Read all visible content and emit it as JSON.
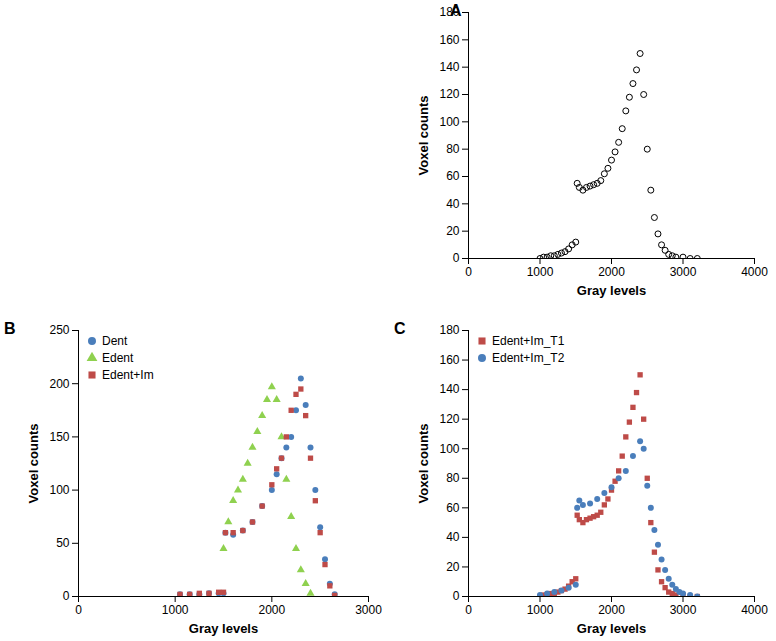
{
  "chart_data": [
    {
      "type": "scatter",
      "title": "A",
      "x_label": "Gray levels",
      "y_label": "Voxel counts",
      "xlim": [
        0,
        4000
      ],
      "xticks": [
        0,
        1000,
        2000,
        3000,
        4000
      ],
      "ylim": [
        0,
        180
      ],
      "yticks": [
        0,
        20,
        40,
        60,
        80,
        100,
        120,
        140,
        160,
        180
      ],
      "color": "#000000",
      "marker": "open_circle",
      "x": [
        1000,
        1050,
        1100,
        1150,
        1200,
        1250,
        1300,
        1350,
        1400,
        1450,
        1500,
        1520,
        1550,
        1600,
        1650,
        1700,
        1750,
        1800,
        1850,
        1900,
        1950,
        2000,
        2050,
        2100,
        2150,
        2200,
        2250,
        2300,
        2350,
        2400,
        2450,
        2500,
        2550,
        2600,
        2650,
        2700,
        2750,
        2800,
        2850,
        2900,
        3000,
        3100,
        3200
      ],
      "values": [
        0,
        1,
        1,
        2,
        2,
        3,
        4,
        5,
        7,
        10,
        12,
        55,
        52,
        50,
        52,
        53,
        54,
        55,
        57,
        62,
        66,
        72,
        78,
        85,
        95,
        108,
        118,
        128,
        138,
        150,
        120,
        80,
        50,
        30,
        18,
        10,
        6,
        3,
        2,
        1,
        1,
        0,
        0
      ]
    },
    {
      "type": "scatter",
      "title": "B",
      "x_label": "Gray levels",
      "y_label": "Voxel counts",
      "xlim": [
        0,
        3000
      ],
      "xticks": [
        0,
        1000,
        2000,
        3000
      ],
      "ylim": [
        0,
        250
      ],
      "yticks": [
        0,
        50,
        100,
        150,
        200,
        250
      ],
      "legend": "top-left",
      "series": [
        {
          "name": "Dent",
          "color": "#4a7ebb",
          "marker": "circle",
          "x": [
            1050,
            1150,
            1250,
            1350,
            1450,
            1500,
            1520,
            1600,
            1700,
            1800,
            1900,
            2000,
            2050,
            2100,
            2150,
            2200,
            2250,
            2300,
            2350,
            2400,
            2450,
            2500,
            2550,
            2600,
            2650
          ],
          "values": [
            2,
            2,
            2,
            3,
            3,
            3,
            60,
            58,
            62,
            70,
            85,
            100,
            115,
            130,
            140,
            150,
            175,
            205,
            180,
            140,
            100,
            65,
            35,
            12,
            2
          ]
        },
        {
          "name": "Edent",
          "color": "#8fd14f",
          "marker": "triangle",
          "x": [
            1500,
            1550,
            1600,
            1650,
            1700,
            1750,
            1800,
            1850,
            1900,
            1950,
            2000,
            2050,
            2100,
            2150,
            2200,
            2250,
            2300,
            2350,
            2400
          ],
          "values": [
            45,
            70,
            90,
            100,
            110,
            125,
            140,
            155,
            170,
            185,
            197,
            185,
            150,
            110,
            75,
            45,
            25,
            12,
            3
          ]
        },
        {
          "name": "Edent+Im",
          "color": "#be4b48",
          "marker": "square",
          "x": [
            1050,
            1150,
            1250,
            1350,
            1450,
            1500,
            1520,
            1600,
            1700,
            1800,
            1900,
            2000,
            2050,
            2100,
            2150,
            2200,
            2250,
            2300,
            2350,
            2400,
            2450,
            2500,
            2550,
            2600,
            2650
          ],
          "values": [
            2,
            2,
            3,
            3,
            4,
            4,
            60,
            60,
            62,
            70,
            85,
            105,
            120,
            130,
            150,
            175,
            190,
            195,
            170,
            130,
            90,
            60,
            30,
            10,
            1
          ]
        }
      ]
    },
    {
      "type": "scatter",
      "title": "C",
      "x_label": "Gray levels",
      "y_label": "Voxel counts",
      "xlim": [
        0,
        4000
      ],
      "xticks": [
        0,
        1000,
        2000,
        3000,
        4000
      ],
      "ylim": [
        0,
        180
      ],
      "yticks": [
        0,
        20,
        40,
        60,
        80,
        100,
        120,
        140,
        160,
        180
      ],
      "legend": "top-left",
      "series": [
        {
          "name": "Edent+Im_T1",
          "color": "#be4b48",
          "marker": "square",
          "x": [
            1000,
            1050,
            1100,
            1150,
            1200,
            1250,
            1300,
            1350,
            1400,
            1450,
            1500,
            1520,
            1550,
            1600,
            1650,
            1700,
            1750,
            1800,
            1850,
            1900,
            1950,
            2000,
            2050,
            2100,
            2150,
            2200,
            2250,
            2300,
            2350,
            2400,
            2450,
            2500,
            2550,
            2600,
            2650,
            2700,
            2750,
            2800,
            2850,
            2900,
            3000,
            3100,
            3200
          ],
          "values": [
            0,
            1,
            1,
            2,
            2,
            3,
            4,
            5,
            7,
            10,
            12,
            55,
            52,
            50,
            52,
            53,
            54,
            55,
            57,
            62,
            66,
            72,
            78,
            85,
            95,
            108,
            118,
            128,
            138,
            150,
            120,
            80,
            50,
            30,
            18,
            10,
            6,
            3,
            2,
            1,
            1,
            0,
            0
          ]
        },
        {
          "name": "Edent+Im_T2",
          "color": "#4a7ebb",
          "marker": "circle",
          "x": [
            1000,
            1100,
            1200,
            1300,
            1400,
            1500,
            1520,
            1550,
            1600,
            1700,
            1800,
            1900,
            2000,
            2100,
            2200,
            2300,
            2400,
            2450,
            2500,
            2550,
            2600,
            2650,
            2700,
            2750,
            2800,
            2850,
            2900,
            2950,
            3000,
            3100,
            3200
          ],
          "values": [
            1,
            2,
            3,
            4,
            6,
            8,
            60,
            65,
            62,
            63,
            66,
            70,
            74,
            80,
            85,
            95,
            105,
            100,
            75,
            60,
            45,
            35,
            25,
            18,
            12,
            8,
            5,
            3,
            2,
            1,
            0
          ]
        }
      ]
    }
  ]
}
